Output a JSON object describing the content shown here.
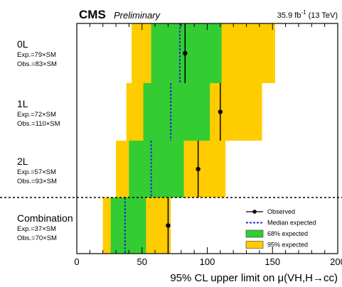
{
  "header": {
    "experiment": "CMS",
    "status": "Preliminary",
    "lumi_value": "35.9 fb",
    "lumi_exponent": "-1",
    "lumi_energy": " (13 TeV)"
  },
  "chart_data": {
    "type": "limit-bands",
    "xlabel": "95% CL upper limit on μ(VH,H→cc)",
    "xlim": [
      0,
      200
    ],
    "xticks": [
      0,
      50,
      100,
      150,
      200
    ],
    "categories": [
      {
        "name": "0L",
        "expected_label": "Exp.=79×SM",
        "observed_label": "Obs.=83×SM",
        "observed": 83,
        "median": 79,
        "band68": [
          57,
          111
        ],
        "band95": [
          42,
          152
        ]
      },
      {
        "name": "1L",
        "expected_label": "Exp.=72×SM",
        "observed_label": "Obs.=110×SM",
        "observed": 110,
        "median": 72,
        "band68": [
          51,
          102
        ],
        "band95": [
          38,
          142
        ]
      },
      {
        "name": "2L",
        "expected_label": "Exp.=57×SM",
        "observed_label": "Obs.=93×SM",
        "observed": 93,
        "median": 57,
        "band68": [
          40,
          82
        ],
        "band95": [
          30,
          114
        ]
      },
      {
        "name": "Combination",
        "expected_label": "Exp.=37×SM",
        "observed_label": "Obs.=70×SM",
        "observed": 70,
        "median": 37,
        "band68": [
          26,
          53
        ],
        "band95": [
          20,
          72
        ]
      }
    ],
    "legend": {
      "position": "bottom-right",
      "items": [
        {
          "key": "observed",
          "label": "Observed"
        },
        {
          "key": "median",
          "label": "Median expected"
        },
        {
          "key": "band68",
          "label": "68% expected"
        },
        {
          "key": "band95",
          "label": "95% expected"
        }
      ]
    },
    "colors": {
      "band68": "#33cc33",
      "band95": "#ffcc00",
      "median": "#2233cc",
      "observed": "#000000"
    }
  }
}
